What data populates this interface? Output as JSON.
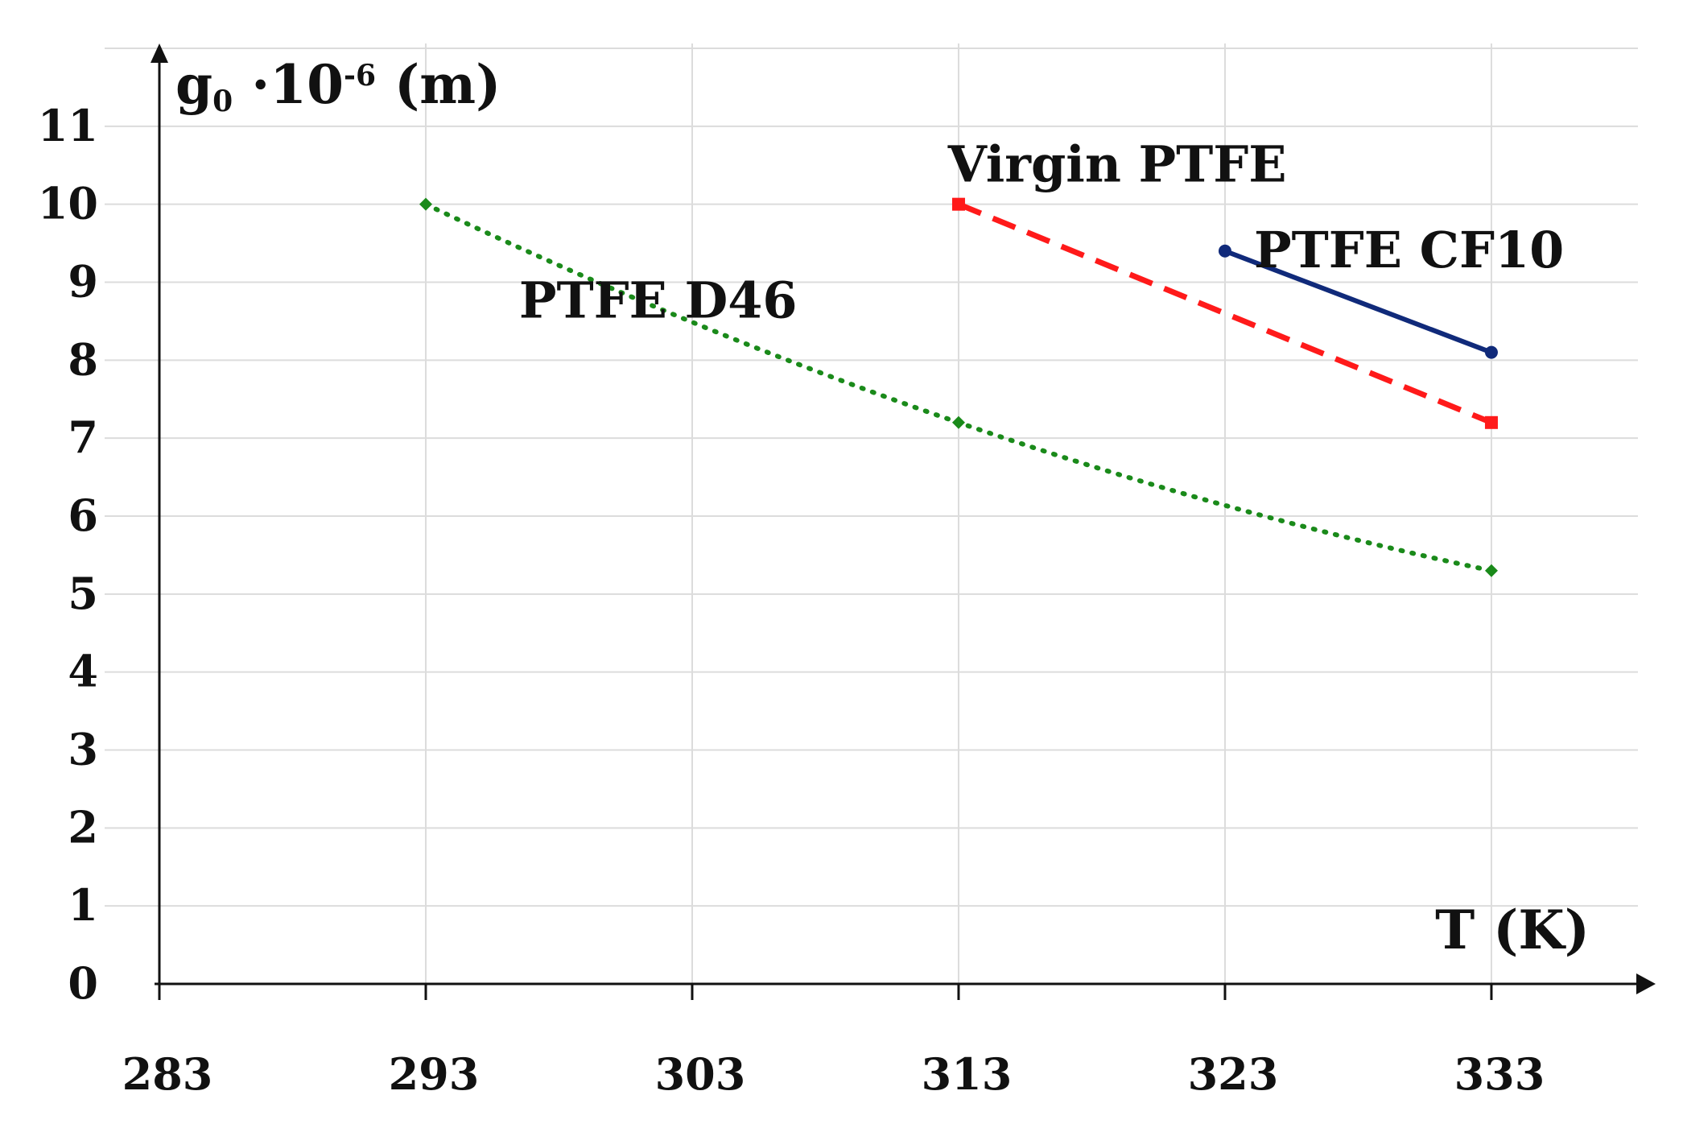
{
  "chart_data": {
    "type": "line",
    "title": "",
    "xlabel": "T (K)",
    "ylabel": {
      "base": "g",
      "sub": "0",
      "mid": " ·10",
      "sup": "-6",
      "tail": " (m)"
    },
    "x_ticks": [
      283,
      293,
      303,
      313,
      323,
      333
    ],
    "y_ticks": [
      0,
      1,
      2,
      3,
      4,
      5,
      6,
      7,
      8,
      9,
      10,
      11
    ],
    "xlim": [
      283,
      338.5
    ],
    "ylim": [
      0,
      12
    ],
    "grid": true,
    "series": [
      {
        "name": "PTFE D46",
        "color": "#1a8a1a",
        "style": "dotted",
        "marker": "diamond",
        "smooth": true,
        "x": [
          293,
          313,
          333
        ],
        "y": [
          10.0,
          7.2,
          5.3
        ],
        "label": {
          "x": 296.5,
          "y": 8.75
        }
      },
      {
        "name": "Virgin PTFE",
        "color": "#ff1a1a",
        "style": "dashed",
        "marker": "square",
        "smooth": false,
        "x": [
          313,
          333
        ],
        "y": [
          10.0,
          7.2
        ],
        "label": {
          "x": 312.6,
          "y": 10.5
        }
      },
      {
        "name": "PTFE CF10",
        "color": "#102a7a",
        "style": "solid",
        "marker": "circle",
        "smooth": false,
        "x": [
          323,
          333
        ],
        "y": [
          9.4,
          8.1
        ],
        "label": {
          "x": 331.5,
          "y": 9.4
        }
      }
    ]
  }
}
